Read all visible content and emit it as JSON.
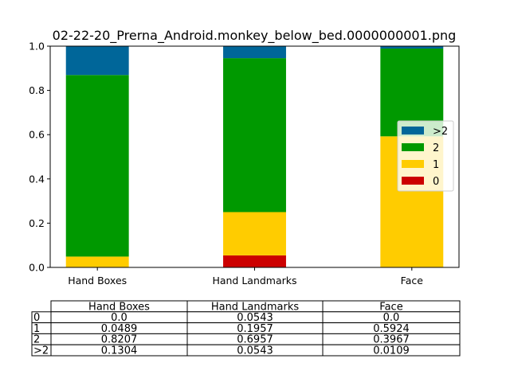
{
  "chart_data": {
    "type": "bar",
    "stacked": true,
    "title": "02-22-20_Prerna_Android.monkey_below_bed.0000000001.png",
    "xlabel": "",
    "ylabel": "",
    "ylim": [
      0,
      1.0
    ],
    "yticks": [
      "0.0",
      "0.2",
      "0.4",
      "0.6",
      "0.8",
      "1.0"
    ],
    "categories": [
      "Hand Boxes",
      "Hand Landmarks",
      "Face"
    ],
    "series": [
      {
        "name": "0",
        "color": "#cc0000",
        "values": [
          0.0,
          0.0543,
          0.0
        ]
      },
      {
        "name": "1",
        "color": "#ffcc00",
        "values": [
          0.0489,
          0.1957,
          0.5924
        ]
      },
      {
        "name": "2",
        "color": "#009900",
        "values": [
          0.8207,
          0.6957,
          0.3967
        ]
      },
      {
        "name": ">2",
        "color": "#006699",
        "values": [
          0.1304,
          0.0543,
          0.0109
        ]
      }
    ],
    "legend_position": "center-right",
    "legend_order": [
      ">2",
      "2",
      "1",
      "0"
    ],
    "grid": false
  },
  "table": {
    "col_headers": [
      "Hand Boxes",
      "Hand Landmarks",
      "Face"
    ],
    "rows": [
      {
        "label": "0",
        "cells": [
          "0.0",
          "0.0543",
          "0.0"
        ]
      },
      {
        "label": "1",
        "cells": [
          "0.0489",
          "0.1957",
          "0.5924"
        ]
      },
      {
        "label": "2",
        "cells": [
          "0.8207",
          "0.6957",
          "0.3967"
        ]
      },
      {
        "label": ">2",
        "cells": [
          "0.1304",
          "0.0543",
          "0.0109"
        ]
      }
    ]
  }
}
